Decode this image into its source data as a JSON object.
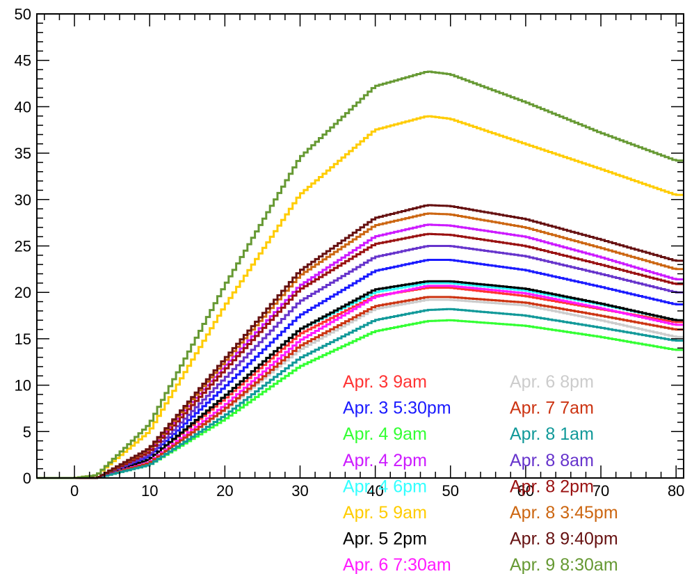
{
  "chart_data": {
    "type": "line",
    "title": "",
    "xlabel": "",
    "ylabel": "",
    "xlim": [
      -5,
      81
    ],
    "ylim": [
      0,
      50
    ],
    "x_ticks": [
      0,
      10,
      20,
      30,
      40,
      50,
      60,
      70,
      80
    ],
    "y_ticks": [
      0,
      5,
      10,
      15,
      20,
      25,
      30,
      35,
      40,
      45,
      50
    ],
    "x_tick_labels": [
      "0",
      "10",
      "20",
      "30",
      "40",
      "50",
      "60",
      "70",
      "80"
    ],
    "y_tick_labels": [
      "0",
      "5",
      "10",
      "15",
      "20",
      "25",
      "30",
      "35",
      "40",
      "45",
      "50"
    ],
    "grid": false,
    "legend_position": "bottom-right",
    "series": [
      {
        "name": "Apr. 3 9am",
        "color": "#ff3333",
        "x": [
          0,
          3,
          10,
          20,
          30,
          40,
          47,
          50,
          60,
          70,
          80
        ],
        "y": [
          0,
          0,
          2.0,
          8.5,
          15.5,
          19.6,
          20.5,
          20.5,
          19.6,
          18.2,
          16.8
        ]
      },
      {
        "name": "Apr. 3 5:30pm",
        "color": "#1a1aff",
        "x": [
          0,
          3,
          10,
          20,
          30,
          40,
          47,
          50,
          60,
          70,
          80
        ],
        "y": [
          0,
          0,
          2.3,
          9.8,
          17.5,
          22.3,
          23.5,
          23.5,
          22.4,
          20.6,
          18.7
        ]
      },
      {
        "name": "Apr. 4 9am",
        "color": "#33ff33",
        "x": [
          0,
          3,
          10,
          20,
          30,
          40,
          47,
          50,
          60,
          70,
          80
        ],
        "y": [
          0,
          0,
          1.4,
          6.3,
          12.0,
          15.8,
          16.9,
          17.0,
          16.4,
          15.2,
          13.8
        ]
      },
      {
        "name": "Apr. 4 2pm",
        "color": "#cc1aff",
        "x": [
          0,
          3,
          10,
          20,
          30,
          40,
          47,
          50,
          60,
          70,
          80
        ],
        "y": [
          0,
          0,
          3.0,
          12.0,
          20.7,
          26.0,
          27.3,
          27.2,
          26.0,
          23.8,
          21.4
        ]
      },
      {
        "name": "Apr. 4 6pm",
        "color": "#33ffff",
        "x": [
          0,
          3,
          10,
          20,
          30,
          40,
          47,
          50,
          60,
          70,
          80
        ],
        "y": [
          0,
          0,
          2.0,
          8.8,
          16.0,
          20.0,
          21.0,
          21.0,
          20.2,
          18.7,
          17.0
        ]
      },
      {
        "name": "Apr. 5 9am",
        "color": "#ffcc00",
        "x": [
          0,
          3,
          10,
          20,
          30,
          40,
          47,
          50,
          60,
          70,
          80
        ],
        "y": [
          0,
          0.3,
          5.0,
          18.5,
          30.5,
          37.5,
          39.0,
          38.7,
          36.0,
          33.3,
          30.5
        ]
      },
      {
        "name": "Apr. 5 2pm",
        "color": "#000000",
        "x": [
          0,
          3,
          10,
          20,
          30,
          40,
          47,
          50,
          60,
          70,
          80
        ],
        "y": [
          0,
          0,
          2.0,
          8.8,
          16.0,
          20.3,
          21.2,
          21.2,
          20.4,
          18.8,
          17.0
        ]
      },
      {
        "name": "Apr. 6 7:30am",
        "color": "#ff1aff",
        "x": [
          0,
          3,
          10,
          20,
          30,
          40,
          47,
          50,
          60,
          70,
          80
        ],
        "y": [
          0,
          0,
          1.7,
          7.8,
          14.8,
          19.5,
          20.7,
          20.7,
          19.9,
          18.3,
          16.5
        ]
      },
      {
        "name": "Apr. 6 8pm",
        "color": "#cccccc",
        "x": [
          0,
          3,
          10,
          20,
          30,
          40,
          47,
          50,
          60,
          70,
          80
        ],
        "y": [
          0,
          0,
          1.6,
          7.3,
          13.8,
          18.2,
          19.2,
          19.2,
          18.6,
          17.0,
          15.2
        ]
      },
      {
        "name": "Apr. 7 7am",
        "color": "#cc3311",
        "x": [
          0,
          3,
          10,
          20,
          30,
          40,
          47,
          50,
          60,
          70,
          80
        ],
        "y": [
          0,
          0,
          1.6,
          7.4,
          14.2,
          18.5,
          19.5,
          19.5,
          18.9,
          17.5,
          16.0
        ]
      },
      {
        "name": "Apr. 8 1am",
        "color": "#119999",
        "x": [
          0,
          3,
          10,
          20,
          30,
          40,
          47,
          50,
          60,
          70,
          80
        ],
        "y": [
          0,
          0,
          1.4,
          6.7,
          12.9,
          17.0,
          18.1,
          18.2,
          17.5,
          16.2,
          14.8
        ]
      },
      {
        "name": "Apr. 8 8am",
        "color": "#6633cc",
        "x": [
          0,
          3,
          10,
          20,
          30,
          40,
          47,
          50,
          60,
          70,
          80
        ],
        "y": [
          0,
          0,
          2.5,
          10.7,
          19.0,
          23.8,
          25.0,
          25.0,
          23.9,
          22.0,
          20.0
        ]
      },
      {
        "name": "Apr. 8 2pm",
        "color": "#991111",
        "x": [
          0,
          3,
          10,
          20,
          30,
          40,
          47,
          50,
          60,
          70,
          80
        ],
        "y": [
          0,
          0,
          2.8,
          11.6,
          20.3,
          25.2,
          26.3,
          26.2,
          25.0,
          23.0,
          20.9
        ]
      },
      {
        "name": "Apr. 8 3:45pm",
        "color": "#cc6611",
        "x": [
          0,
          3,
          10,
          20,
          30,
          40,
          47,
          50,
          60,
          70,
          80
        ],
        "y": [
          0,
          0,
          3.1,
          12.5,
          21.8,
          27.2,
          28.5,
          28.4,
          27.0,
          24.8,
          22.5
        ]
      },
      {
        "name": "Apr. 8 9:40pm",
        "color": "#661111",
        "x": [
          0,
          3,
          10,
          20,
          30,
          40,
          47,
          50,
          60,
          70,
          80
        ],
        "y": [
          0,
          0,
          3.2,
          12.8,
          22.3,
          28.0,
          29.4,
          29.3,
          27.9,
          25.7,
          23.4
        ]
      },
      {
        "name": "Apr. 9 8:30am",
        "color": "#669933",
        "x": [
          0,
          3,
          10,
          20,
          30,
          40,
          47,
          50,
          60,
          70,
          80
        ],
        "y": [
          0,
          0.3,
          5.8,
          20.7,
          34.5,
          42.2,
          43.8,
          43.5,
          40.5,
          37.2,
          34.2
        ]
      }
    ]
  }
}
